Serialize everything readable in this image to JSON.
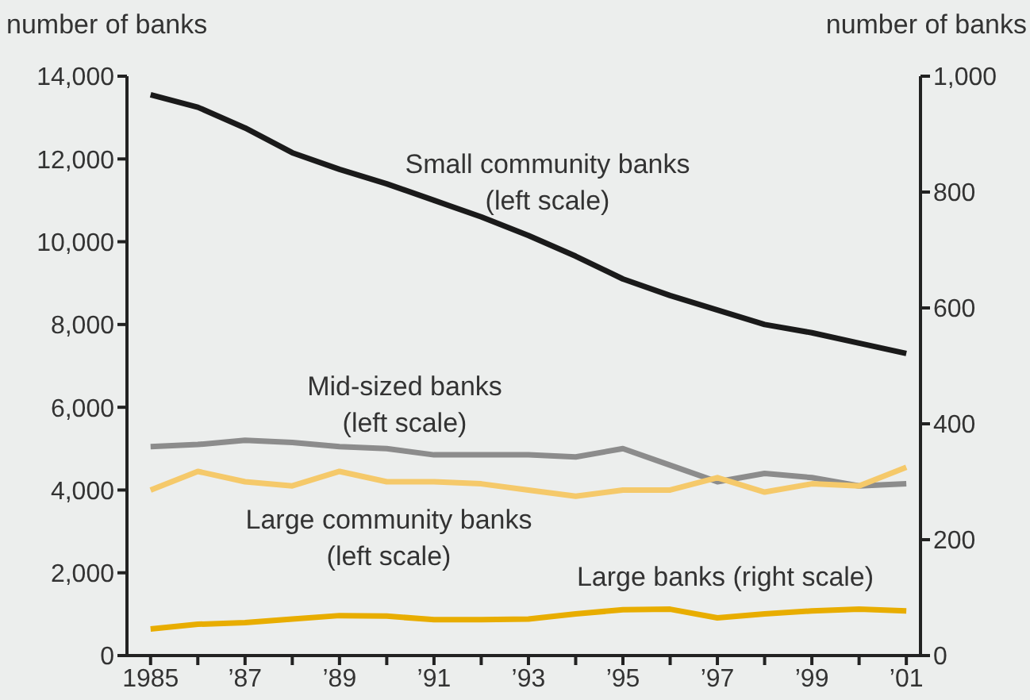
{
  "chart_data": {
    "type": "line",
    "ylabel": "number of banks",
    "y2label": "number of banks",
    "x": [
      1985,
      1986,
      1987,
      1988,
      1989,
      1990,
      1991,
      1992,
      1993,
      1994,
      1995,
      1996,
      1997,
      1998,
      1999,
      2000,
      2001
    ],
    "series": [
      {
        "name": "Small community banks (left scale)",
        "color": "#1a1a1a",
        "values": [
          13550,
          13250,
          12750,
          12150,
          11750,
          11400,
          11000,
          10600,
          10150,
          9650,
          9100,
          8700,
          8350,
          8000,
          7800,
          7550,
          7300
        ]
      },
      {
        "name": "Mid-sized banks (left scale)",
        "color": "#8c8c8c",
        "values": [
          5050,
          5100,
          5200,
          5150,
          5050,
          5000,
          4850,
          4850,
          4850,
          4800,
          5000,
          4600,
          4200,
          4400,
          4300,
          4100,
          4150
        ]
      },
      {
        "name": "Large community banks (left scale)",
        "color": "#f5c96a",
        "values": [
          4000,
          4450,
          4200,
          4100,
          4450,
          4200,
          4200,
          4150,
          4000,
          3850,
          4000,
          4000,
          4300,
          3950,
          4150,
          4100,
          4550
        ]
      },
      {
        "name": "Large banks (right scale)",
        "color": "#e8ad00",
        "axis": "y2",
        "values": [
          46,
          54,
          57,
          63,
          69,
          68,
          62,
          62,
          63,
          72,
          79,
          80,
          65,
          72,
          77,
          80,
          77
        ]
      }
    ],
    "xlim": [
      1984.5,
      2001.3
    ],
    "xticks": [
      {
        "value": 1985,
        "label": "1985"
      },
      {
        "value": 1986,
        "label": null
      },
      {
        "value": 1987,
        "label": "’87"
      },
      {
        "value": 1988,
        "label": null
      },
      {
        "value": 1989,
        "label": "’89"
      },
      {
        "value": 1990,
        "label": null
      },
      {
        "value": 1991,
        "label": "’91"
      },
      {
        "value": 1992,
        "label": null
      },
      {
        "value": 1993,
        "label": "’93"
      },
      {
        "value": 1994,
        "label": null
      },
      {
        "value": 1995,
        "label": "’95"
      },
      {
        "value": 1996,
        "label": null
      },
      {
        "value": 1997,
        "label": "’97"
      },
      {
        "value": 1998,
        "label": null
      },
      {
        "value": 1999,
        "label": "’99"
      },
      {
        "value": 2000,
        "label": null
      },
      {
        "value": 2001,
        "label": "’01"
      }
    ],
    "ylim": [
      0,
      14000
    ],
    "yticks": [
      {
        "value": 0,
        "label": "0"
      },
      {
        "value": 2000,
        "label": "2,000"
      },
      {
        "value": 4000,
        "label": "4,000"
      },
      {
        "value": 6000,
        "label": "6,000"
      },
      {
        "value": 8000,
        "label": "8,000"
      },
      {
        "value": 10000,
        "label": "10,000"
      },
      {
        "value": 12000,
        "label": "12,000"
      },
      {
        "value": 14000,
        "label": "14,000"
      }
    ],
    "y2lim": [
      0,
      1000
    ],
    "y2ticks": [
      {
        "value": 0,
        "label": "0"
      },
      {
        "value": 200,
        "label": "200"
      },
      {
        "value": 400,
        "label": "400"
      },
      {
        "value": 600,
        "label": "600"
      },
      {
        "value": 800,
        "label": "800"
      },
      {
        "value": 1000,
        "label": "1,000"
      }
    ],
    "grid": false,
    "legend": false,
    "marker": "none",
    "line_style": "solid"
  }
}
